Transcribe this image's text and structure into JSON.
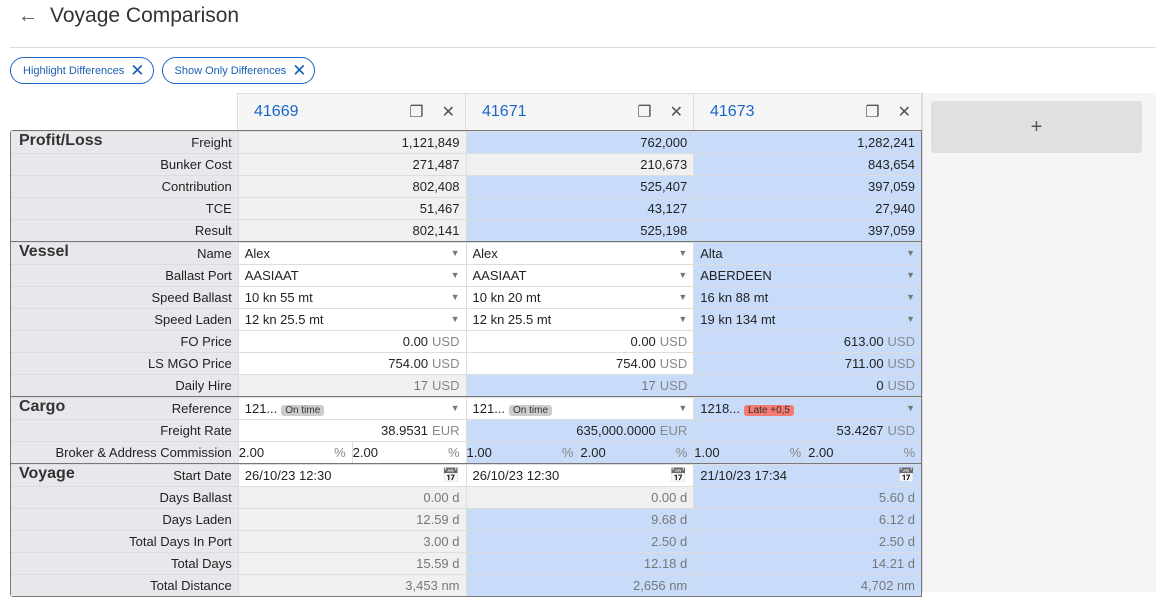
{
  "header": {
    "title": "Voyage Comparison"
  },
  "chips": [
    {
      "label": "Highlight Differences"
    },
    {
      "label": "Show Only Differences"
    }
  ],
  "columns": [
    {
      "id": "41669"
    },
    {
      "id": "41671"
    },
    {
      "id": "41673"
    }
  ],
  "add_label": "+",
  "colors": {
    "diff": "#c8dcfa",
    "readonly": "#f0f0f0",
    "accent": "#1a66c9",
    "late": "#f47a72"
  },
  "sections": [
    {
      "name": "Profit/Loss",
      "rows": [
        {
          "label": "Freight",
          "cells": [
            {
              "v": "1,121,849",
              "ro": 1
            },
            {
              "v": "762,000",
              "blue": 1
            },
            {
              "v": "1,282,241",
              "blue": 1
            }
          ]
        },
        {
          "label": "Bunker Cost",
          "cells": [
            {
              "v": "271,487",
              "ro": 1
            },
            {
              "v": "210,673",
              "ro": 1
            },
            {
              "v": "843,654",
              "blue": 1
            }
          ]
        },
        {
          "label": "Contribution",
          "cells": [
            {
              "v": "802,408",
              "ro": 1
            },
            {
              "v": "525,407",
              "blue": 1
            },
            {
              "v": "397,059",
              "blue": 1
            }
          ]
        },
        {
          "label": "TCE",
          "cells": [
            {
              "v": "51,467",
              "ro": 1
            },
            {
              "v": "43,127",
              "blue": 1
            },
            {
              "v": "27,940",
              "blue": 1
            }
          ]
        },
        {
          "label": "Result",
          "cells": [
            {
              "v": "802,141",
              "ro": 1
            },
            {
              "v": "525,198",
              "blue": 1
            },
            {
              "v": "397,059",
              "blue": 1
            }
          ]
        }
      ]
    },
    {
      "name": "Vessel",
      "rows": [
        {
          "label": "Name",
          "cells": [
            {
              "v": "Alex",
              "dd": 1
            },
            {
              "v": "Alex",
              "dd": 1
            },
            {
              "v": "Alta",
              "dd": 1,
              "blue": 1
            }
          ]
        },
        {
          "label": "Ballast Port",
          "cells": [
            {
              "v": "AASIAAT",
              "dd": 1
            },
            {
              "v": "AASIAAT",
              "dd": 1
            },
            {
              "v": "ABERDEEN",
              "dd": 1,
              "blue": 1
            }
          ]
        },
        {
          "label": "Speed Ballast",
          "cells": [
            {
              "v": "10 kn 55 mt",
              "dd": 1
            },
            {
              "v": "10 kn 20 mt",
              "dd": 1
            },
            {
              "v": "16 kn 88 mt",
              "dd": 1,
              "blue": 1
            }
          ]
        },
        {
          "label": "Speed Laden",
          "cells": [
            {
              "v": "12 kn 25.5 mt",
              "dd": 1
            },
            {
              "v": "12 kn 25.5 mt",
              "dd": 1
            },
            {
              "v": "19 kn 134 mt",
              "dd": 1,
              "blue": 1
            }
          ]
        },
        {
          "label": "FO Price",
          "cells": [
            {
              "v": "0.00",
              "u": "USD"
            },
            {
              "v": "0.00",
              "u": "USD"
            },
            {
              "v": "613.00",
              "u": "USD",
              "blue": 1
            }
          ]
        },
        {
          "label": "LS MGO Price",
          "cells": [
            {
              "v": "754.00",
              "u": "USD"
            },
            {
              "v": "754.00",
              "u": "USD"
            },
            {
              "v": "711.00",
              "u": "USD",
              "blue": 1
            }
          ]
        },
        {
          "label": "Daily Hire",
          "cells": [
            {
              "v": "17",
              "u": "USD",
              "ro": 1,
              "dim": 1
            },
            {
              "v": "17",
              "u": "USD",
              "blue": 1,
              "dim": 1
            },
            {
              "v": "0",
              "u": "USD",
              "blue": 1
            }
          ]
        }
      ]
    },
    {
      "name": "Cargo",
      "rows": [
        {
          "label": "Reference",
          "cells": [
            {
              "v": "121...",
              "dd": 1,
              "badge": "On time"
            },
            {
              "v": "121...",
              "dd": 1,
              "badge": "On time"
            },
            {
              "v": "1218...",
              "dd": 1,
              "badge": "Late +0,5",
              "late": 1,
              "blue": 1
            }
          ]
        },
        {
          "label": "Freight Rate",
          "cells": [
            {
              "v": "38.9531",
              "u": "EUR"
            },
            {
              "v": "635,000.0000",
              "u": "EUR",
              "blue": 1
            },
            {
              "v": "53.4267",
              "u": "USD",
              "blue": 1
            }
          ]
        },
        {
          "label": "Broker & Address Commission",
          "cells": [
            {
              "split": [
                {
                  "v": "2.00",
                  "u": "%"
                },
                {
                  "v": "2.00",
                  "u": "%"
                }
              ]
            },
            {
              "blue": 1,
              "split": [
                {
                  "v": "1.00",
                  "u": "%"
                },
                {
                  "v": "2.00",
                  "u": "%"
                }
              ]
            },
            {
              "blue": 1,
              "split": [
                {
                  "v": "1.00",
                  "u": "%"
                },
                {
                  "v": "2.00",
                  "u": "%"
                }
              ]
            }
          ]
        }
      ]
    },
    {
      "name": "Voyage",
      "rows": [
        {
          "label": "Start Date",
          "cells": [
            {
              "v": "26/10/23 12:30",
              "cal": 1
            },
            {
              "v": "26/10/23 12:30",
              "cal": 1
            },
            {
              "v": "21/10/23 17:34",
              "cal": 1,
              "blue": 1
            }
          ]
        },
        {
          "label": "Days Ballast",
          "cells": [
            {
              "v": "0.00 d",
              "ro": 1,
              "dim": 1
            },
            {
              "v": "0.00 d",
              "ro": 1,
              "dim": 1
            },
            {
              "v": "5.60 d",
              "blue": 1,
              "dim": 1
            }
          ]
        },
        {
          "label": "Days Laden",
          "cells": [
            {
              "v": "12.59 d",
              "ro": 1,
              "dim": 1
            },
            {
              "v": "9.68 d",
              "blue": 1,
              "dim": 1
            },
            {
              "v": "6.12 d",
              "blue": 1,
              "dim": 1
            }
          ]
        },
        {
          "label": "Total Days In Port",
          "cells": [
            {
              "v": "3.00 d",
              "ro": 1,
              "dim": 1
            },
            {
              "v": "2.50 d",
              "blue": 1,
              "dim": 1
            },
            {
              "v": "2.50 d",
              "blue": 1,
              "dim": 1
            }
          ]
        },
        {
          "label": "Total Days",
          "cells": [
            {
              "v": "15.59 d",
              "ro": 1,
              "dim": 1
            },
            {
              "v": "12.18 d",
              "blue": 1,
              "dim": 1
            },
            {
              "v": "14.21 d",
              "blue": 1,
              "dim": 1
            }
          ]
        },
        {
          "label": "Total Distance",
          "cells": [
            {
              "v": "3,453 nm",
              "ro": 1,
              "dim": 1
            },
            {
              "v": "2,656 nm",
              "blue": 1,
              "dim": 1
            },
            {
              "v": "4,702 nm",
              "blue": 1,
              "dim": 1
            }
          ]
        }
      ]
    }
  ]
}
